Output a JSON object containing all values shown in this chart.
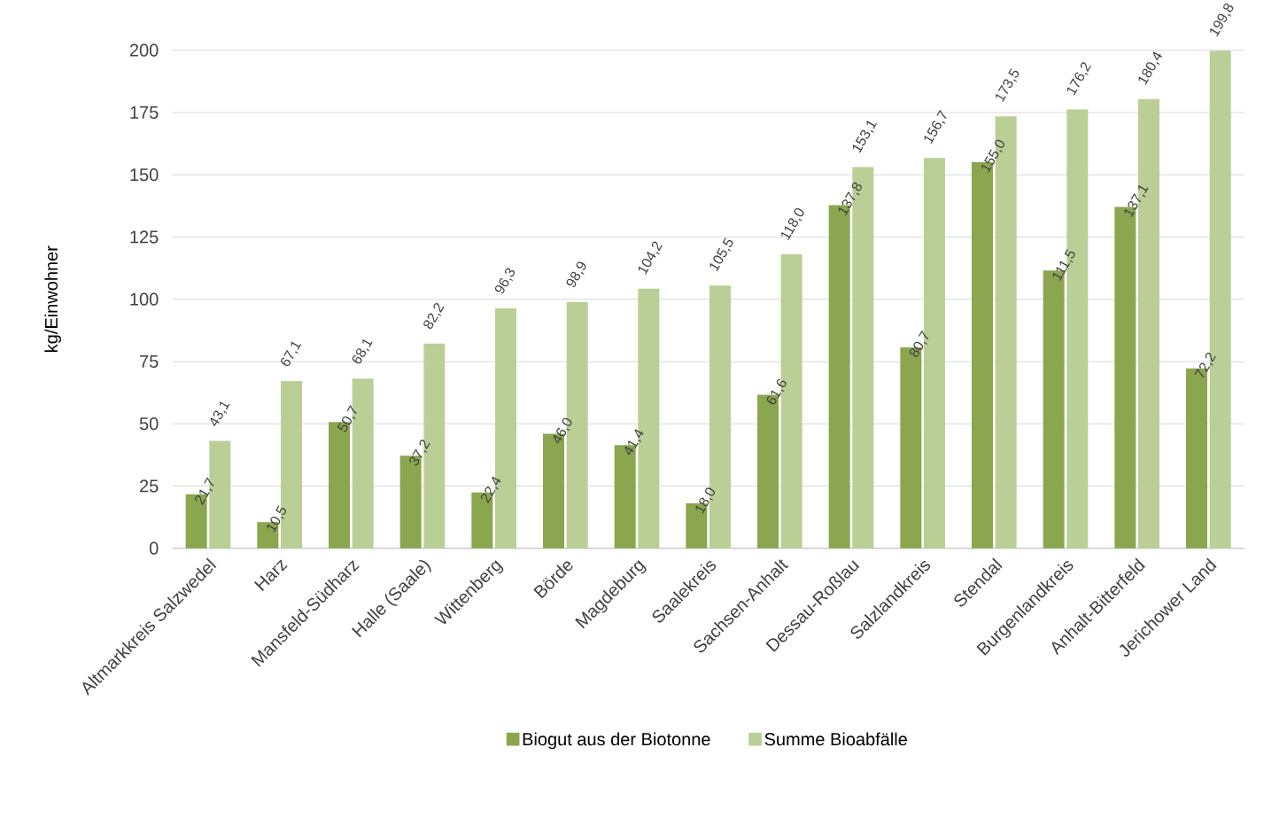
{
  "chart_data": {
    "type": "bar",
    "ylabel": "kg/Einwohner",
    "categories": [
      "Altmarkkreis Salzwedel",
      "Harz",
      "Mansfeld-Südharz",
      "Halle (Saale)",
      "Wittenberg",
      "Börde",
      "Magdeburg",
      "Saalekreis",
      "Sachsen-Anhalt",
      "Dessau-Roßlau",
      "Salzlandkreis",
      "Stendal",
      "Burgenlandkreis",
      "Anhalt-Bitterfeld",
      "Jerichower Land"
    ],
    "series": [
      {
        "name": "Biogut aus der Biotonne",
        "color": "#8aa64f",
        "values": [
          21.7,
          10.5,
          50.7,
          37.2,
          22.4,
          46.0,
          41.4,
          18.0,
          61.6,
          137.8,
          80.7,
          155.0,
          111.5,
          137.1,
          72.2
        ],
        "value_labels": [
          "21,7",
          "10,5",
          "50,7",
          "37,2",
          "22,4",
          "46,0",
          "41,4",
          "18,0",
          "61,6",
          "137,8",
          "80,7",
          "155,0",
          "111,5",
          "137,1",
          "72,2"
        ]
      },
      {
        "name": "Summe Bioabfälle",
        "color": "#b9cf96",
        "values": [
          43.1,
          67.1,
          68.1,
          82.2,
          96.3,
          98.9,
          104.2,
          105.5,
          118.0,
          153.1,
          156.7,
          173.5,
          176.2,
          180.4,
          199.8
        ],
        "value_labels": [
          "43,1",
          "67,1",
          "68,1",
          "82,2",
          "96,3",
          "98,9",
          "104,2",
          "105,5",
          "118,0",
          "153,1",
          "156,7",
          "173,5",
          "176,2",
          "180,4",
          "199,8"
        ]
      }
    ],
    "ylim": [
      0,
      200
    ],
    "yticks": [
      0,
      25,
      50,
      75,
      100,
      125,
      150,
      175,
      200
    ],
    "grid": "y",
    "legend": "bottom"
  }
}
